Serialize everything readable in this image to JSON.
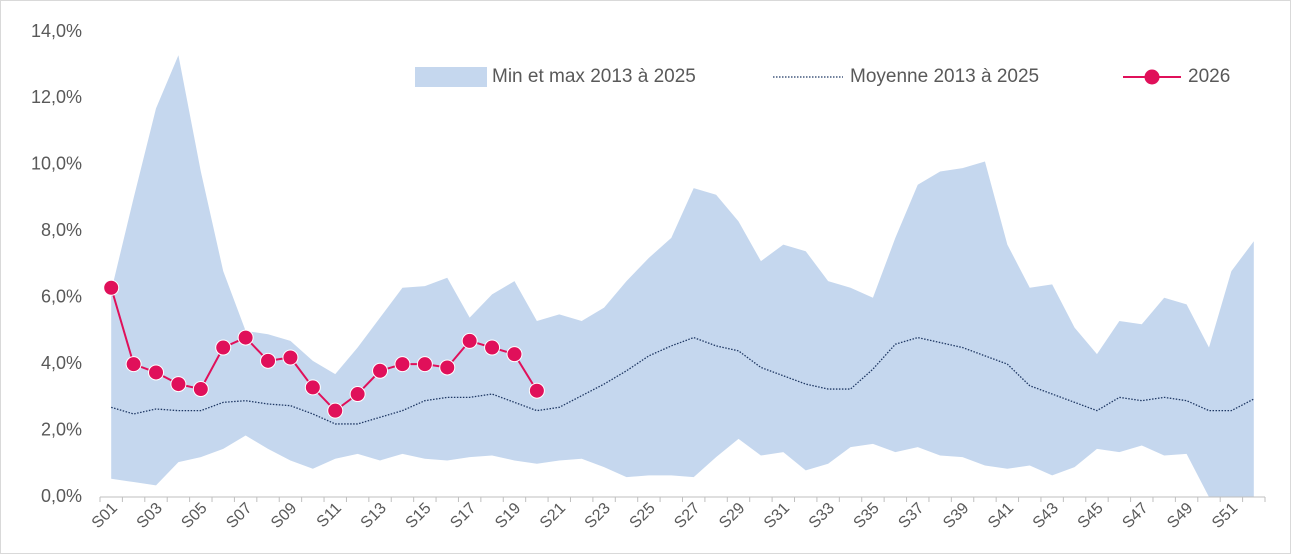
{
  "chart_data": {
    "type": "band-line",
    "categories": [
      "S01",
      null,
      "S03",
      null,
      "S05",
      null,
      "S07",
      null,
      "S09",
      null,
      "S11",
      null,
      "S13",
      null,
      "S15",
      null,
      "S17",
      null,
      "S19",
      null,
      "S21",
      null,
      "S23",
      null,
      "S25",
      null,
      "S27",
      null,
      "S29",
      null,
      "S31",
      null,
      "S33",
      null,
      "S35",
      null,
      "S37",
      null,
      "S39",
      null,
      "S41",
      null,
      "S43",
      null,
      "S45",
      null,
      "S47",
      null,
      "S49",
      null,
      "S51",
      null
    ],
    "ylim": [
      0,
      14
    ],
    "yticks": [
      {
        "value": 0,
        "label": "0,0%"
      },
      {
        "value": 2,
        "label": "2,0%"
      },
      {
        "value": 4,
        "label": "4,0%"
      },
      {
        "value": 6,
        "label": "6,0%"
      },
      {
        "value": 8,
        "label": "8,0%"
      },
      {
        "value": 10,
        "label": "10,0%"
      },
      {
        "value": 12,
        "label": "12,0%"
      },
      {
        "value": 14,
        "label": "14,0%"
      }
    ],
    "legend": "top-right",
    "series": [
      {
        "name": "Min et max 2013 à 2025",
        "type": "band",
        "color": "#c5d7ee",
        "low": [
          0.55,
          0.45,
          0.35,
          1.05,
          1.2,
          1.45,
          1.85,
          1.45,
          1.1,
          0.85,
          1.15,
          1.3,
          1.1,
          1.3,
          1.15,
          1.1,
          1.2,
          1.25,
          1.1,
          1.0,
          1.1,
          1.15,
          0.9,
          0.6,
          0.65,
          0.65,
          0.6,
          1.2,
          1.75,
          1.25,
          1.35,
          0.8,
          1.0,
          1.5,
          1.6,
          1.35,
          1.5,
          1.25,
          1.2,
          0.95,
          0.85,
          0.95,
          0.65,
          0.9,
          1.45,
          1.35,
          1.55,
          1.25,
          1.3,
          0,
          0,
          0
        ],
        "high": [
          6.2,
          9.0,
          11.7,
          13.3,
          9.8,
          6.8,
          5.0,
          4.9,
          4.7,
          4.1,
          3.7,
          4.5,
          5.4,
          6.3,
          6.35,
          6.6,
          5.4,
          6.1,
          6.5,
          5.3,
          5.5,
          5.3,
          5.7,
          6.5,
          7.2,
          7.8,
          9.3,
          9.1,
          8.3,
          7.1,
          7.6,
          7.4,
          6.5,
          6.3,
          6.0,
          7.8,
          9.4,
          9.8,
          9.9,
          10.1,
          7.6,
          6.3,
          6.4,
          5.1,
          4.3,
          5.3,
          5.2,
          6.0,
          5.8,
          4.5,
          6.8,
          7.7
        ]
      },
      {
        "name": "Moyenne 2013 à 2025",
        "type": "dotted-line",
        "color": "#1f3864",
        "values": [
          2.7,
          2.5,
          2.65,
          2.6,
          2.6,
          2.85,
          2.9,
          2.8,
          2.75,
          2.5,
          2.2,
          2.2,
          2.4,
          2.6,
          2.9,
          3.0,
          3.0,
          3.1,
          2.85,
          2.6,
          2.7,
          3.05,
          3.4,
          3.8,
          4.25,
          4.55,
          4.8,
          4.55,
          4.4,
          3.9,
          3.65,
          3.4,
          3.25,
          3.25,
          3.85,
          4.6,
          4.8,
          4.65,
          4.5,
          4.25,
          4.0,
          3.35,
          3.1,
          2.85,
          2.6,
          3.0,
          2.9,
          3.0,
          2.9,
          2.6,
          2.6,
          2.95
        ]
      },
      {
        "name": "2026",
        "type": "marker-line",
        "color": "#e0105a",
        "values": [
          6.3,
          4.0,
          3.75,
          3.4,
          3.25,
          4.5,
          4.8,
          4.1,
          4.2,
          3.3,
          2.6,
          3.1,
          3.8,
          4.0,
          4.0,
          3.9,
          4.7,
          4.5,
          4.3,
          3.2,
          null,
          null,
          null,
          null,
          null,
          null,
          null,
          null,
          null,
          null,
          null,
          null,
          null,
          null,
          null,
          null,
          null,
          null,
          null,
          null,
          null,
          null,
          null,
          null,
          null,
          null,
          null,
          null,
          null,
          null,
          null,
          null
        ]
      }
    ]
  }
}
